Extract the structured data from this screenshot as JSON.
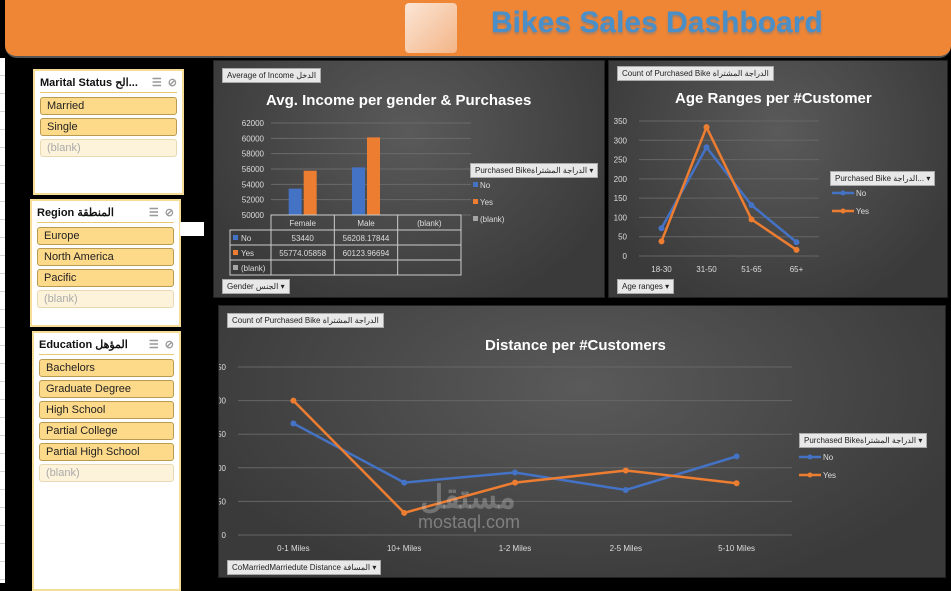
{
  "header": {
    "title": "Bikes Sales Dashboard",
    "logo": "cyclist-logo"
  },
  "slicers": [
    {
      "title": "Marital Status الح...",
      "items": [
        "Married",
        "Single",
        "(blank)"
      ]
    },
    {
      "title": "Region المنطقة",
      "items": [
        "Europe",
        "North America",
        "Pacific",
        "(blank)"
      ]
    },
    {
      "title": "Education المؤهل",
      "items": [
        "Bachelors",
        "Graduate Degree",
        "High School",
        "Partial College",
        "Partial High School",
        "(blank)"
      ]
    }
  ],
  "colors": {
    "no": "#4472c4",
    "yes": "#ed7d31",
    "blank": "#a5a5a5",
    "header": "#ef8636"
  },
  "watermark": {
    "arabic": "مستقل",
    "latin": "mostaql.com"
  },
  "chart_data": [
    {
      "type": "bar",
      "title": "Avg. Income per gender & Purchases",
      "value_button": "Average of Income الدخل",
      "axis_button": "Gender الجنس",
      "legend_title": "Purchased Bikeالدراجة المشتراة",
      "legend": [
        "No",
        "Yes",
        "(blank)"
      ],
      "categories": [
        "Female",
        "Male",
        "(blank)"
      ],
      "series": [
        {
          "name": "No",
          "values": [
            53440,
            56208.17844,
            null
          ],
          "labels": [
            "53440",
            "56208.17844",
            ""
          ]
        },
        {
          "name": "Yes",
          "values": [
            55774.05858,
            60123.96694,
            null
          ],
          "labels": [
            "55774.05858",
            "60123.96694",
            ""
          ]
        },
        {
          "name": "(blank)",
          "values": [
            null,
            null,
            null
          ],
          "labels": [
            "",
            "",
            ""
          ]
        }
      ],
      "ylim": [
        50000,
        62000
      ],
      "yticks": [
        "50000",
        "52000",
        "54000",
        "56000",
        "58000",
        "60000",
        "62000"
      ],
      "legend_position": "right"
    },
    {
      "type": "line",
      "title": "Age Ranges per #Customer",
      "value_button": "Count of Purchased Bike الدراجة المشتراة",
      "axis_button": "Age ranges",
      "legend_title": "Purchased Bike الدراجة...",
      "categories": [
        "18-30",
        "31-50",
        "51-65",
        "65+"
      ],
      "series": [
        {
          "name": "No",
          "values": [
            72,
            282,
            132,
            36
          ]
        },
        {
          "name": "Yes",
          "values": [
            38,
            334,
            95,
            16
          ]
        }
      ],
      "ylim": [
        0,
        350
      ],
      "yticks": [
        "0",
        "50",
        "100",
        "150",
        "200",
        "250",
        "300",
        "350"
      ],
      "legend_position": "right"
    },
    {
      "type": "line",
      "title": "Distance per #Customers",
      "value_button": "Count of Purchased Bike الدراجة المشتراة",
      "axis_button": "CoMarriedMarriedute Distance المسافة",
      "legend_title": "Purchased Bikeالدراجة المشتراة",
      "categories": [
        "0-1 Miles",
        "10+ Miles",
        "1-2 Miles",
        "2-5 Miles",
        "5-10 Miles"
      ],
      "series": [
        {
          "name": "No",
          "values": [
            166,
            78,
            93,
            67,
            117
          ]
        },
        {
          "name": "Yes",
          "values": [
            200,
            33,
            78,
            96,
            77
          ]
        }
      ],
      "ylim": [
        0,
        250
      ],
      "yticks": [
        "0",
        "50",
        "100",
        "150",
        "200",
        "250"
      ],
      "legend_position": "right"
    }
  ]
}
